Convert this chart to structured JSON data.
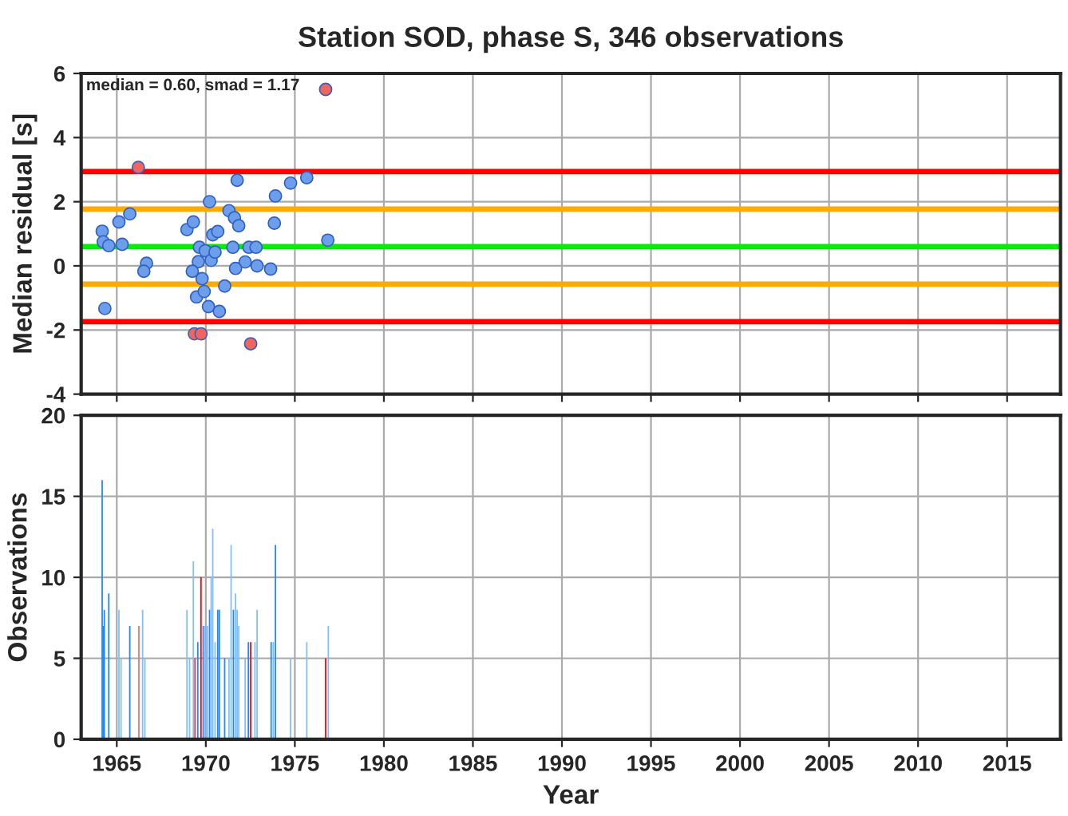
{
  "chart_data": [
    {
      "type": "scatter",
      "title": "Station SOD, phase S, 346 observations",
      "ylabel": "Median residual [s]",
      "annotations": [
        "median = 0.60, smad = 1.17"
      ],
      "xlim": [
        1963,
        2018
      ],
      "xticks": [
        1965,
        1970,
        1975,
        1980,
        1985,
        1990,
        1995,
        2000,
        2005,
        2010,
        2015
      ],
      "ylim": [
        -4,
        6
      ],
      "yticks": [
        -4,
        -2,
        0,
        2,
        4,
        6
      ],
      "grid": true,
      "tick_labels": "y",
      "marker": "circle",
      "series": [
        {
          "color": "#6d9eeb",
          "x": [
            1964.18,
            1964.24,
            1964.55,
            1964.33,
            1965.12,
            1965.3,
            1965.73,
            1966.67,
            1966.52,
            1968.94,
            1969.3,
            1969.64,
            1969.58,
            1969.24,
            1969.79,
            1969.48,
            1969.91,
            1969.97,
            1970.21,
            1970.39,
            1970.67,
            1970.3,
            1970.52,
            1970.15,
            1970.76,
            1971.06,
            1971.3,
            1971.61,
            1971.85,
            1971.76,
            1971.52,
            1972.42,
            1972.82,
            1972.21,
            1971.67,
            1972.88,
            1973.64,
            1973.85,
            1973.91,
            1974.76,
            1975.67,
            1976.85
          ],
          "values": [
            1.08,
            0.75,
            0.63,
            -1.33,
            1.37,
            0.67,
            1.62,
            0.08,
            -0.17,
            1.13,
            1.37,
            0.58,
            0.13,
            -0.17,
            -0.4,
            -0.97,
            -0.8,
            0.47,
            2.0,
            0.97,
            1.07,
            0.17,
            0.43,
            -1.27,
            -1.42,
            -0.63,
            1.72,
            1.5,
            1.25,
            2.67,
            0.58,
            0.58,
            0.58,
            0.12,
            -0.08,
            0.0,
            -0.1,
            1.33,
            2.18,
            2.58,
            2.75,
            0.8
          ]
        },
        {
          "color": "#f0665e",
          "x": [
            1966.21,
            1969.36,
            1969.73,
            1972.52,
            1976.73
          ],
          "values": [
            3.07,
            -2.12,
            -2.12,
            -2.43,
            5.5
          ]
        }
      ],
      "ref_lines": [
        {
          "axis": "y",
          "value": 2.94,
          "color": "#ff0000"
        },
        {
          "axis": "y",
          "value": 1.77,
          "color": "#ffaa00"
        },
        {
          "axis": "y",
          "value": 0.6,
          "color": "#00ee00"
        },
        {
          "axis": "y",
          "value": -0.57,
          "color": "#ffaa00"
        },
        {
          "axis": "y",
          "value": -1.74,
          "color": "#ff0000"
        }
      ]
    },
    {
      "type": "bar",
      "xlabel": "Year",
      "ylabel": "Observations",
      "xlim": [
        1963,
        2018
      ],
      "xticks": [
        1965,
        1970,
        1975,
        1980,
        1985,
        1990,
        1995,
        2000,
        2005,
        2010,
        2015
      ],
      "ylim": [
        0,
        20
      ],
      "yticks": [
        0,
        5,
        10,
        15,
        20
      ],
      "grid": true,
      "x": [
        1964.18,
        1964.24,
        1964.3,
        1964.55,
        1965.12,
        1965.24,
        1965.73,
        1966.24,
        1966.45,
        1966.58,
        1968.94,
        1969.09,
        1969.3,
        1969.39,
        1969.55,
        1969.73,
        1969.85,
        1969.94,
        1970.09,
        1970.21,
        1970.3,
        1970.39,
        1970.52,
        1970.67,
        1970.76,
        1971.06,
        1971.3,
        1971.42,
        1971.55,
        1971.67,
        1971.76,
        1971.85,
        1972.21,
        1972.39,
        1972.52,
        1972.76,
        1972.88,
        1973.67,
        1973.79,
        1973.91,
        1974.76,
        1975.67,
        1976.73,
        1976.88
      ],
      "values": [
        16,
        7,
        8,
        9,
        8,
        5,
        7,
        7,
        8,
        5,
        8,
        5,
        11,
        5,
        6,
        10,
        7,
        7,
        7,
        8,
        10,
        13,
        6,
        8,
        8,
        5,
        5,
        12,
        8,
        9,
        8,
        7,
        5,
        6,
        6,
        6,
        8,
        6,
        6,
        12,
        5,
        6,
        5,
        7
      ],
      "colors": [
        "#1e88ff",
        "#1e88ff",
        "#1e88ff",
        "#1e88ff",
        "#80bfff",
        "#80bfff",
        "#1e88ff",
        "#f07070",
        "#80bfff",
        "#80bfff",
        "#80bfff",
        "#80bfff",
        "#80bfff",
        "#ff3030",
        "#1e88ff",
        "#ff0000",
        "#1e88ff",
        "#80bfff",
        "#80bfff",
        "#1e88ff",
        "#80bfff",
        "#80bfff",
        "#80bfff",
        "#1e88ff",
        "#1e88ff",
        "#1e88ff",
        "#80bfff",
        "#80bfff",
        "#1e88ff",
        "#80bfff",
        "#80bfff",
        "#80bfff",
        "#80bfff",
        "#1e88ff",
        "#ff0000",
        "#80bfff",
        "#80bfff",
        "#1e88ff",
        "#80bfff",
        "#1e88ff",
        "#80bfff",
        "#80bfff",
        "#ff0000",
        "#80bfff"
      ]
    }
  ]
}
